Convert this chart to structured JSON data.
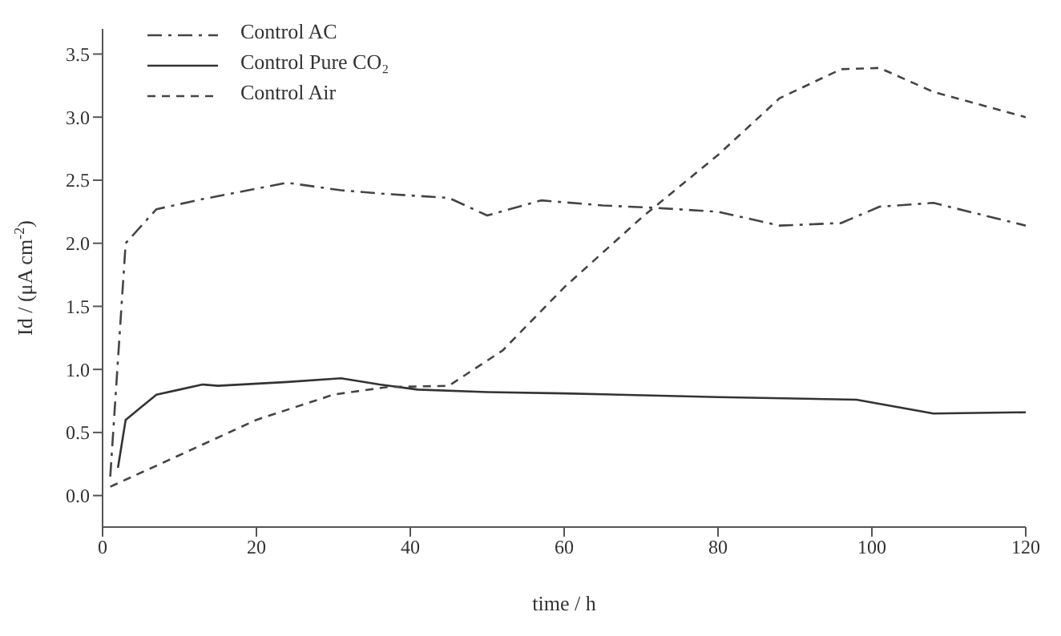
{
  "chart_data": {
    "type": "line",
    "xlabel": "time / h",
    "ylabel": "Id / (μA cm$^{-2}$)",
    "xlim": [
      0,
      120
    ],
    "xticks": [
      0,
      20,
      40,
      60,
      80,
      100,
      120
    ],
    "ylim": [
      -0.25,
      3.7
    ],
    "yticks": [
      {
        "value": 0,
        "label": "0.0"
      },
      0.5,
      {
        "value": 1,
        "label": "1.0"
      },
      1.5,
      {
        "value": 2,
        "label": "2.0"
      },
      2.5,
      {
        "value": 3,
        "label": "3.0"
      },
      3.5
    ],
    "grid": false,
    "legend": "top left",
    "marker": "none",
    "series": [
      {
        "name": "Control AC",
        "color": "#444444",
        "line_style": "dashdot",
        "x": [
          1,
          3,
          7,
          13,
          24,
          31,
          37,
          45,
          50,
          57,
          65,
          72,
          80,
          88,
          96,
          101,
          108,
          120
        ],
        "values": [
          0.15,
          2.0,
          2.27,
          2.35,
          2.48,
          2.42,
          2.39,
          2.36,
          2.22,
          2.34,
          2.3,
          2.28,
          2.25,
          2.14,
          2.16,
          2.29,
          2.32,
          2.14
        ]
      },
      {
        "name": "Control Pure CO₂",
        "color": "#333333",
        "line_style": "solid",
        "x": [
          2,
          3,
          7,
          10,
          13,
          15,
          24,
          31,
          36,
          41,
          50,
          60,
          80,
          98,
          108,
          120
        ],
        "values": [
          0.22,
          0.6,
          0.8,
          0.84,
          0.88,
          0.87,
          0.9,
          0.93,
          0.88,
          0.84,
          0.82,
          0.81,
          0.78,
          0.76,
          0.65,
          0.66
        ]
      },
      {
        "name": "Control Air",
        "color": "#444444",
        "line_style": "dashed",
        "x": [
          1,
          10,
          20,
          30,
          37,
          45,
          52,
          60,
          70,
          80,
          88,
          96,
          101,
          108,
          120
        ],
        "values": [
          0.07,
          0.32,
          0.6,
          0.8,
          0.86,
          0.87,
          1.15,
          1.65,
          2.2,
          2.7,
          3.15,
          3.38,
          3.39,
          3.2,
          3.0
        ]
      }
    ]
  }
}
